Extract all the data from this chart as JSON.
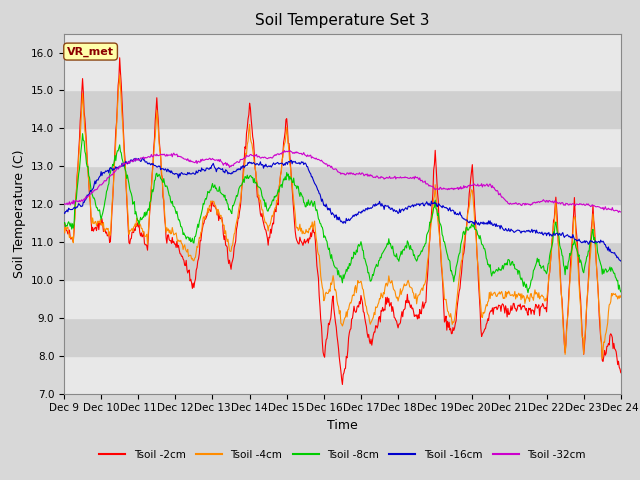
{
  "title": "Soil Temperature Set 3",
  "xlabel": "Time",
  "ylabel": "Soil Temperature (C)",
  "ylim": [
    7.0,
    16.5
  ],
  "yticks": [
    7.0,
    8.0,
    9.0,
    10.0,
    11.0,
    12.0,
    13.0,
    14.0,
    15.0,
    16.0
  ],
  "xlim": [
    0,
    360
  ],
  "xtick_positions": [
    0,
    24,
    48,
    72,
    96,
    120,
    144,
    168,
    192,
    216,
    240,
    264,
    288,
    312,
    336,
    360
  ],
  "xtick_labels": [
    "Dec 9",
    "Dec 10",
    "Dec 11",
    "Dec 12",
    "Dec 13",
    "Dec 14",
    "Dec 15",
    "Dec 16",
    "Dec 17",
    "Dec 18",
    "Dec 19",
    "Dec 20",
    "Dec 21",
    "Dec 22",
    "Dec 23",
    "Dec 24"
  ],
  "series_colors": [
    "#ff0000",
    "#ff8c00",
    "#00cc00",
    "#0000cc",
    "#cc00cc"
  ],
  "series_labels": [
    "Tsoil -2cm",
    "Tsoil -4cm",
    "Tsoil -8cm",
    "Tsoil -16cm",
    "Tsoil -32cm"
  ],
  "annotation_text": "VR_met",
  "background_color": "#d8d8d8",
  "plot_bg_color": "#d8d8d8",
  "band_color_light": "#e8e8e8",
  "band_color_dark": "#c8c8c8",
  "title_fontsize": 11,
  "axis_label_fontsize": 9,
  "tick_fontsize": 7.5
}
